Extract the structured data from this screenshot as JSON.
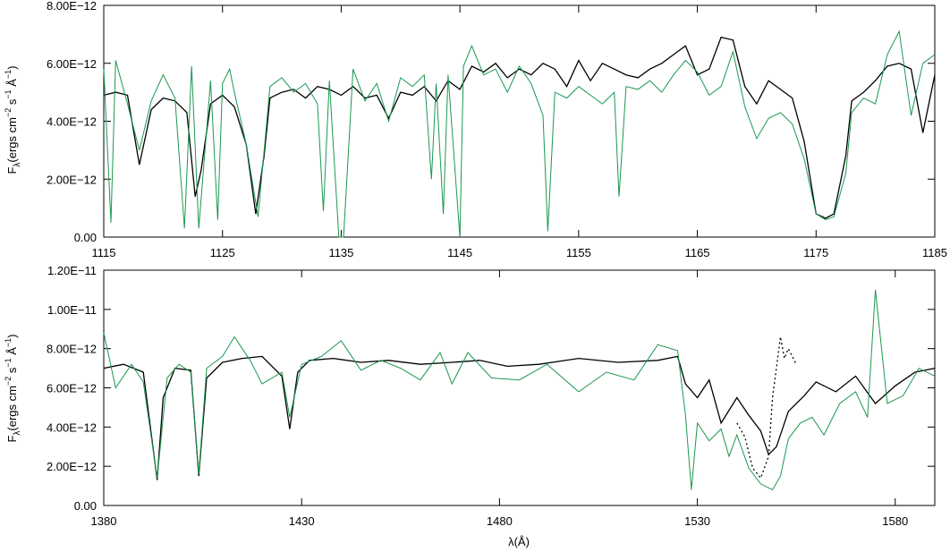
{
  "chart_data": [
    {
      "type": "line",
      "ylabel_main": "F",
      "ylabel_sub": "λ",
      "ylabel_rest": "(ergs cm",
      "ylabel_exp1": "−2",
      "ylabel_mid": " s",
      "ylabel_exp2": "−1",
      "ylabel_unit": " Å",
      "ylabel_exp3": "−1",
      "ylabel_close": ")",
      "xlabel": "",
      "xlim": [
        1115,
        1185
      ],
      "ylim": [
        0,
        8e-12
      ],
      "xticks": [
        "1115",
        "1125",
        "1135",
        "1145",
        "1155",
        "1165",
        "1175",
        "1185"
      ],
      "xtick_values": [
        1115,
        1125,
        1135,
        1145,
        1155,
        1165,
        1175,
        1185
      ],
      "yticks": [
        "0.00",
        "2.00E−12",
        "4.00E−12",
        "6.00E−12",
        "8.00E−12"
      ],
      "ytick_values": [
        0,
        2e-12,
        4e-12,
        6e-12,
        8e-12
      ],
      "series": [
        {
          "color": "#000000",
          "style": "solid",
          "x": [
            1115,
            1116,
            1117,
            1118,
            1119,
            1120,
            1121,
            1122,
            1122.7,
            1123.2,
            1124,
            1125,
            1126,
            1127,
            1127.8,
            1128.5,
            1129,
            1130,
            1131,
            1132,
            1133,
            1134,
            1135,
            1136,
            1137,
            1138,
            1139,
            1140,
            1141,
            1142,
            1143,
            1144,
            1145,
            1146,
            1147,
            1148,
            1149,
            1150,
            1151,
            1152,
            1153,
            1154,
            1155,
            1156,
            1157,
            1158,
            1159,
            1160,
            1161,
            1162,
            1163,
            1164,
            1165,
            1166,
            1167,
            1168,
            1169,
            1170,
            1171,
            1172,
            1173,
            1174,
            1175,
            1175.8,
            1176.5,
            1177.5,
            1178,
            1179,
            1180,
            1181,
            1182,
            1183,
            1184,
            1185
          ],
          "y": [
            4.9e-12,
            5e-12,
            4.9e-12,
            2.5e-12,
            4.4e-12,
            4.8e-12,
            4.7e-12,
            4.3e-12,
            1.4e-12,
            2.3e-12,
            4.6e-12,
            4.9e-12,
            4.5e-12,
            3.2e-12,
            8e-13,
            2.8e-12,
            4.8e-12,
            5e-12,
            5.1e-12,
            4.8e-12,
            5.2e-12,
            5.1e-12,
            4.9e-12,
            5.2e-12,
            4.8e-12,
            4.9e-12,
            4.1e-12,
            5e-12,
            4.9e-12,
            5.2e-12,
            4.7e-12,
            5.4e-12,
            5.1e-12,
            5.9e-12,
            5.7e-12,
            6e-12,
            5.5e-12,
            5.8e-12,
            5.6e-12,
            6e-12,
            5.8e-12,
            5.2e-12,
            6.1e-12,
            5.4e-12,
            6e-12,
            5.8e-12,
            5.6e-12,
            5.5e-12,
            5.8e-12,
            6e-12,
            6.3e-12,
            6.6e-12,
            5.6e-12,
            5.8e-12,
            6.9e-12,
            6.8e-12,
            5.2e-12,
            4.6e-12,
            5.4e-12,
            5.1e-12,
            4.8e-12,
            3.3e-12,
            8e-13,
            6.5e-13,
            8e-13,
            2.8e-12,
            4.7e-12,
            5e-12,
            5.4e-12,
            5.9e-12,
            6e-12,
            5.8e-12,
            3.6e-12,
            5.6e-12
          ]
        },
        {
          "color": "#1a9850",
          "style": "solid",
          "x": [
            1115,
            1115.6,
            1116,
            1117,
            1118,
            1119,
            1120,
            1121,
            1121.8,
            1122.4,
            1123,
            1124,
            1124.6,
            1125,
            1125.6,
            1126,
            1127,
            1128,
            1129,
            1130,
            1131,
            1132,
            1133,
            1133.5,
            1134,
            1134.8,
            1135.2,
            1136,
            1137,
            1138,
            1139,
            1140,
            1141,
            1142,
            1142.6,
            1143,
            1143.6,
            1144,
            1145,
            1145.3,
            1146,
            1147,
            1148,
            1149,
            1150,
            1151,
            1152,
            1152.4,
            1153,
            1154,
            1155,
            1156,
            1157,
            1158,
            1158.4,
            1159,
            1160,
            1161,
            1162,
            1163,
            1164,
            1165,
            1166,
            1167,
            1168,
            1169,
            1170,
            1171,
            1172,
            1173,
            1174,
            1175,
            1175.8,
            1176.5,
            1177.5,
            1178,
            1179,
            1180,
            1181,
            1182,
            1183,
            1184,
            1185
          ],
          "y": [
            5.8e-12,
            5e-13,
            6.1e-12,
            4.6e-12,
            3e-12,
            4.7e-12,
            5.6e-12,
            4.8e-12,
            3e-13,
            5.9e-12,
            3e-13,
            5.4e-12,
            6e-13,
            5.3e-12,
            5.8e-12,
            5e-12,
            3.2e-12,
            7e-13,
            5.2e-12,
            5.5e-12,
            5e-12,
            5.3e-12,
            4.6e-12,
            9e-13,
            5.4e-12,
            0.0,
            0.0,
            5.8e-12,
            4.7e-12,
            5.3e-12,
            4e-12,
            5.5e-12,
            5.2e-12,
            5.6e-12,
            2e-12,
            5.3e-12,
            8e-13,
            5.6e-12,
            0.0,
            5.9e-12,
            6.6e-12,
            5.6e-12,
            5.8e-12,
            5e-12,
            5.9e-12,
            5.3e-12,
            4.2e-12,
            2e-13,
            5e-12,
            4.8e-12,
            5.2e-12,
            4.9e-12,
            4.6e-12,
            5e-12,
            1.4e-12,
            5.2e-12,
            5.1e-12,
            5.4e-12,
            5e-12,
            5.6e-12,
            6.1e-12,
            5.7e-12,
            4.9e-12,
            5.2e-12,
            6.4e-12,
            4.5e-12,
            3.4e-12,
            4.1e-12,
            4.3e-12,
            3.9e-12,
            2.7e-12,
            8e-13,
            6e-13,
            7e-13,
            2.2e-12,
            4.3e-12,
            4.8e-12,
            4.6e-12,
            6.3e-12,
            7.1e-12,
            4.2e-12,
            6e-12,
            6.3e-12
          ]
        }
      ]
    },
    {
      "type": "line",
      "ylabel_main": "F",
      "ylabel_sub": "λ",
      "ylabel_rest": "(ergs cm",
      "ylabel_exp1": "−2",
      "ylabel_mid": " s",
      "ylabel_exp2": "−1",
      "ylabel_unit": " Å",
      "ylabel_exp3": "−1",
      "ylabel_close": ")",
      "xlabel": "λ(Å)",
      "xlim": [
        1380,
        1590
      ],
      "ylim": [
        0,
        1.2e-11
      ],
      "xticks": [
        "1380",
        "1430",
        "1480",
        "1530",
        "1580"
      ],
      "xtick_values": [
        1380,
        1430,
        1480,
        1530,
        1580
      ],
      "yticks": [
        "0.00",
        "2.00E−12",
        "4.00E−12",
        "6.00E−12",
        "8.00E−12",
        "1.00E−11",
        "1.20E−11"
      ],
      "ytick_values": [
        0,
        2e-12,
        4e-12,
        6e-12,
        8e-12,
        1e-11,
        1.2e-11
      ],
      "series": [
        {
          "color": "#000000",
          "style": "solid",
          "x": [
            1380,
            1385,
            1390,
            1393.5,
            1395,
            1398,
            1402,
            1404,
            1406,
            1410,
            1415,
            1420,
            1425,
            1427,
            1429,
            1432,
            1438,
            1445,
            1452,
            1460,
            1468,
            1475,
            1482,
            1490,
            1500,
            1510,
            1520,
            1525,
            1527,
            1530,
            1533,
            1536,
            1540,
            1543,
            1546,
            1548,
            1550,
            1553,
            1557,
            1560,
            1565,
            1570,
            1575,
            1580,
            1585,
            1590
          ],
          "y": [
            7e-12,
            7.2e-12,
            6.8e-12,
            1.3e-12,
            5.5e-12,
            7e-12,
            6.9e-12,
            1.5e-12,
            6.5e-12,
            7.3e-12,
            7.5e-12,
            7.6e-12,
            6.6e-12,
            3.9e-12,
            6.8e-12,
            7.4e-12,
            7.5e-12,
            7.3e-12,
            7.4e-12,
            7.2e-12,
            7.3e-12,
            7.4e-12,
            7.1e-12,
            7.2e-12,
            7.5e-12,
            7.3e-12,
            7.4e-12,
            7.6e-12,
            6.2e-12,
            5.5e-12,
            6.4e-12,
            4.2e-12,
            5.5e-12,
            4.6e-12,
            3.8e-12,
            2.6e-12,
            3e-12,
            4.8e-12,
            5.6e-12,
            6.3e-12,
            5.8e-12,
            6.6e-12,
            5.2e-12,
            6.1e-12,
            6.8e-12,
            7e-12
          ]
        },
        {
          "color": "#000000",
          "style": "dotted",
          "x": [
            1540,
            1542,
            1544,
            1546,
            1548,
            1549,
            1551,
            1552,
            1553,
            1555
          ],
          "y": [
            4.2e-12,
            3.5e-12,
            1.9e-12,
            1.4e-12,
            2.5e-12,
            5.5e-12,
            8.6e-12,
            7.5e-12,
            8e-12,
            7.2e-12
          ],
          "name": ""
        },
        {
          "color": "#1a9850",
          "style": "solid",
          "x": [
            1380,
            1383,
            1387,
            1390,
            1393.5,
            1396,
            1399,
            1402,
            1404,
            1406,
            1410,
            1413,
            1417,
            1420,
            1425,
            1427,
            1430,
            1435,
            1440,
            1445,
            1450,
            1455,
            1460,
            1465,
            1468,
            1472,
            1478,
            1485,
            1492,
            1500,
            1507,
            1514,
            1520,
            1525,
            1527,
            1528.5,
            1530,
            1533,
            1536,
            1538,
            1540,
            1543,
            1546,
            1549,
            1551,
            1553,
            1556,
            1559,
            1562,
            1566,
            1570,
            1573,
            1575,
            1578,
            1582,
            1586,
            1590
          ],
          "y": [
            8.8e-12,
            6e-12,
            7.2e-12,
            6.3e-12,
            1.4e-12,
            6.5e-12,
            7.2e-12,
            6.8e-12,
            1.6e-12,
            7e-12,
            7.6e-12,
            8.6e-12,
            7.4e-12,
            6.2e-12,
            6.8e-12,
            4.5e-12,
            7.2e-12,
            7.6e-12,
            8.4e-12,
            6.9e-12,
            7.4e-12,
            7e-12,
            6.4e-12,
            7.8e-12,
            6.2e-12,
            7.8e-12,
            6.5e-12,
            6.4e-12,
            7.2e-12,
            5.8e-12,
            6.8e-12,
            6.4e-12,
            8.2e-12,
            7.9e-12,
            4.6e-12,
            8e-13,
            4.2e-12,
            3.3e-12,
            3.9e-12,
            2.5e-12,
            3.6e-12,
            1.9e-12,
            1.1e-12,
            8e-13,
            1.5e-12,
            3.4e-12,
            4.2e-12,
            4.5e-12,
            3.6e-12,
            5.2e-12,
            5.8e-12,
            4.5e-12,
            1.1e-11,
            5.2e-12,
            5.6e-12,
            7e-12,
            6.6e-12
          ]
        }
      ]
    }
  ]
}
